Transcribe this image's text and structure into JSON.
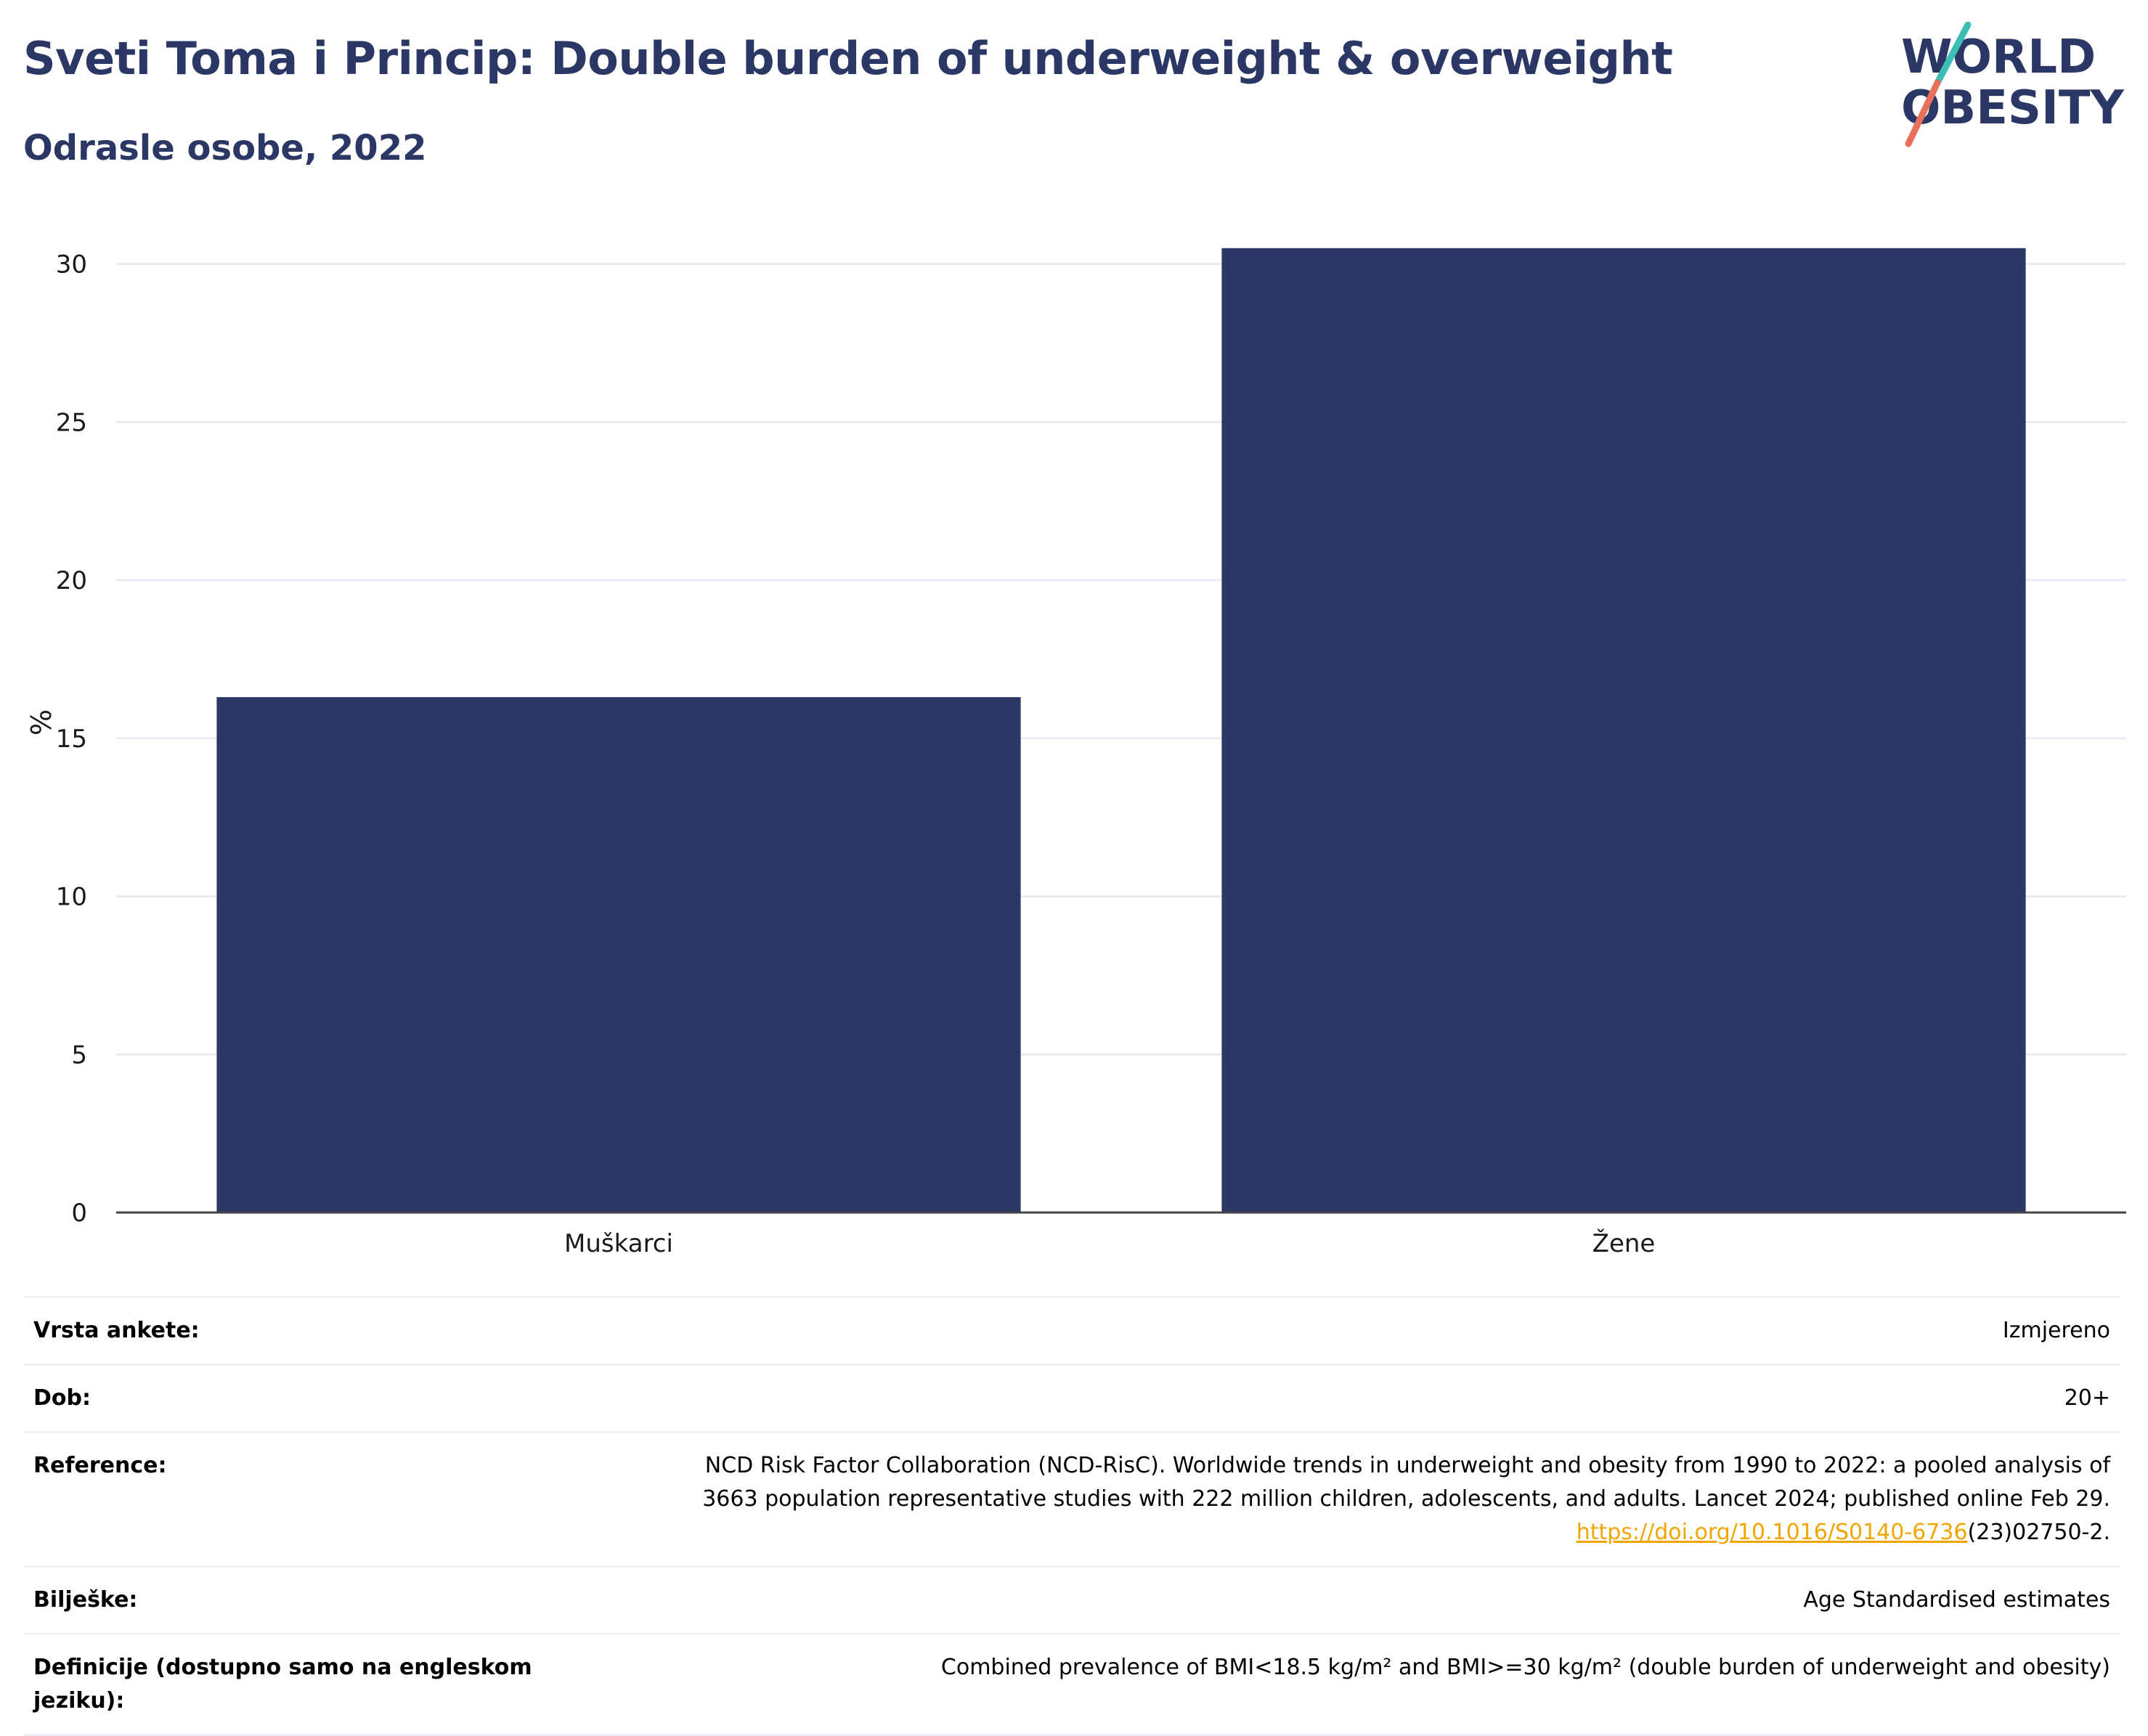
{
  "header": {
    "title": "Sveti Toma i Princip: Double burden of underweight & overweight",
    "subtitle": "Odrasle osobe, 2022"
  },
  "logo": {
    "line1": "WORLD",
    "line2": "OBESITY",
    "colors": {
      "text": "#2b3764",
      "slash_top": "#3bbfb5",
      "slash_bottom": "#e8705a"
    }
  },
  "chart_data": {
    "type": "bar",
    "title": "Sveti Toma i Princip: Double burden of underweight & overweight",
    "subtitle": "Odrasle osobe, 2022",
    "categories": [
      "Muškarci",
      "Žene"
    ],
    "values": [
      16.3,
      30.5
    ],
    "ylabel": "%",
    "xlabel": "",
    "ylim": [
      0,
      31
    ],
    "yticks": [
      0,
      5,
      10,
      15,
      20,
      25,
      30
    ],
    "grid": true,
    "bar_color": "#2b3764"
  },
  "info": {
    "rows": [
      {
        "key": "Vrsta ankete:",
        "value": "Izmjereno"
      },
      {
        "key": "Dob:",
        "value": "20+"
      },
      {
        "key": "Reference:",
        "value_line1": "NCD Risk Factor Collaboration (NCD-RisC). Worldwide trends in underweight and obesity from 1990 to 2022: a pooled analysis of",
        "value_line2": "3663 population representative studies with 222 million children, adolescents, and adults. Lancet 2024; published online Feb 29.",
        "link_text": "https://doi.org/10.1016/S0140-6736",
        "link_suffix": "(23)02750-2."
      },
      {
        "key": "Bilješke:",
        "value": "Age Standardised estimates"
      },
      {
        "key": "Definicije (dostupno samo na engleskom jeziku):",
        "value": "Combined prevalence of BMI<18.5 kg/m² and BMI>=30 kg/m² (double burden of underweight and obesity)"
      }
    ]
  }
}
